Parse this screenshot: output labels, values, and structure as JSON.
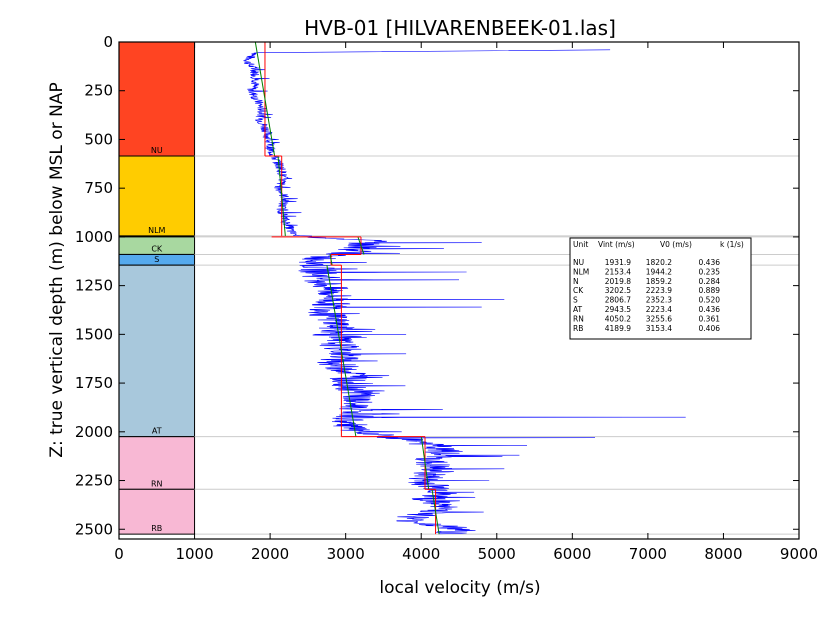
{
  "chart_data": {
    "type": "line",
    "title": "HVB-01 [HILVARENBEEK-01.las]",
    "xlabel": "local velocity (m/s)",
    "ylabel": "Z: true vertical depth (m) below MSL or NAP",
    "xlim": [
      0,
      9000
    ],
    "ylim": [
      0,
      2550
    ],
    "y_inverted": true,
    "x_ticks": [
      "0",
      "1000",
      "2000",
      "3000",
      "4000",
      "5000",
      "6000",
      "7000",
      "8000",
      "9000"
    ],
    "y_ticks": [
      "0",
      "250",
      "500",
      "750",
      "1000",
      "1250",
      "1500",
      "1750",
      "2000",
      "2250",
      "2500"
    ],
    "x_tick_values": [
      0,
      1000,
      2000,
      3000,
      4000,
      5000,
      6000,
      7000,
      8000,
      9000
    ],
    "y_tick_values": [
      0,
      250,
      500,
      750,
      1000,
      1250,
      1500,
      1750,
      2000,
      2250,
      2500
    ],
    "colors": {
      "log": "#0000ff",
      "vint": "#ff0000",
      "v0k": "#008000",
      "boundary": "#cccccc"
    },
    "units": [
      {
        "name": "NU",
        "label": "NU",
        "top": 0,
        "base": 585,
        "color": "#ff4422",
        "vint": 1931.9,
        "v0": 1820.2,
        "k": 0.436
      },
      {
        "name": "NLM",
        "label": "NLM",
        "top": 585,
        "base": 995,
        "color": "#ffcc00",
        "vint": 2153.4,
        "v0": 1944.2,
        "k": 0.235
      },
      {
        "name": "N",
        "label": "",
        "top": 995,
        "base": 1000,
        "color": "#ffcc00",
        "vint": 2019.8,
        "v0": 1859.2,
        "k": 0.284
      },
      {
        "name": "CK",
        "label": "CK",
        "top": 1000,
        "base": 1090,
        "color": "#a8d8a0",
        "vint": 3202.5,
        "v0": 2223.9,
        "k": 0.889
      },
      {
        "name": "S",
        "label": "S",
        "top": 1090,
        "base": 1145,
        "color": "#55aaee",
        "vint": 2806.7,
        "v0": 2352.3,
        "k": 0.52
      },
      {
        "name": "AT",
        "label": "AT",
        "top": 1145,
        "base": 2025,
        "color": "#a8c8dc",
        "vint": 2943.5,
        "v0": 2223.4,
        "k": 0.436
      },
      {
        "name": "RN",
        "label": "RN",
        "top": 2025,
        "base": 2295,
        "color": "#f8b8d4",
        "vint": 4050.2,
        "v0": 3255.6,
        "k": 0.361
      },
      {
        "name": "RB",
        "label": "RB",
        "top": 2295,
        "base": 2525,
        "color": "#f8b8d4",
        "vint": 4189.9,
        "v0": 3153.4,
        "k": 0.406
      }
    ],
    "legend": {
      "placement": "right",
      "header": [
        "Unit",
        "Vint (m/s)",
        "V0 (m/s)",
        "k (1/s)"
      ],
      "rows": [
        [
          "NU",
          "1931.9",
          "1820.2",
          "0.436"
        ],
        [
          "NLM",
          "2153.4",
          "1944.2",
          "0.235"
        ],
        [
          "N",
          "2019.8",
          "1859.2",
          "0.284"
        ],
        [
          "CK",
          "3202.5",
          "2223.9",
          "0.889"
        ],
        [
          "S",
          "2806.7",
          "2352.3",
          "0.520"
        ],
        [
          "AT",
          "2943.5",
          "2223.4",
          "0.436"
        ],
        [
          "RN",
          "4050.2",
          "3255.6",
          "0.361"
        ],
        [
          "RB",
          "4189.9",
          "3153.4",
          "0.406"
        ]
      ]
    },
    "log_trend": [
      [
        1850,
        55
      ],
      [
        1750,
        70
      ],
      [
        1700,
        100
      ],
      [
        1800,
        150
      ],
      [
        1820,
        200
      ],
      [
        1750,
        250
      ],
      [
        1830,
        300
      ],
      [
        1900,
        350
      ],
      [
        1870,
        400
      ],
      [
        1950,
        450
      ],
      [
        1980,
        500
      ],
      [
        2000,
        550
      ],
      [
        2050,
        585
      ],
      [
        2150,
        650
      ],
      [
        2170,
        700
      ],
      [
        2120,
        750
      ],
      [
        2200,
        800
      ],
      [
        2150,
        850
      ],
      [
        2180,
        900
      ],
      [
        2250,
        950
      ],
      [
        2300,
        990
      ],
      [
        3300,
        1020
      ],
      [
        3200,
        1050
      ],
      [
        3100,
        1080
      ],
      [
        2700,
        1100
      ],
      [
        2600,
        1150
      ],
      [
        2750,
        1250
      ],
      [
        2850,
        1300
      ],
      [
        2800,
        1350
      ],
      [
        2750,
        1400
      ],
      [
        2900,
        1450
      ],
      [
        2800,
        1500
      ],
      [
        2900,
        1550
      ],
      [
        3000,
        1600
      ],
      [
        2850,
        1650
      ],
      [
        3100,
        1700
      ],
      [
        3000,
        1750
      ],
      [
        3200,
        1800
      ],
      [
        3100,
        1850
      ],
      [
        3200,
        1900
      ],
      [
        3000,
        1950
      ],
      [
        3100,
        2000
      ],
      [
        4000,
        2050
      ],
      [
        4300,
        2100
      ],
      [
        4100,
        2150
      ],
      [
        4200,
        2200
      ],
      [
        4000,
        2250
      ],
      [
        4300,
        2300
      ],
      [
        4100,
        2350
      ],
      [
        4300,
        2400
      ],
      [
        3800,
        2450
      ],
      [
        4500,
        2500
      ],
      [
        4400,
        2525
      ]
    ],
    "log_spikes": [
      [
        6500,
        40
      ],
      [
        4800,
        1030
      ],
      [
        4300,
        1060
      ],
      [
        4600,
        1180
      ],
      [
        4500,
        1220
      ],
      [
        5100,
        1320
      ],
      [
        4800,
        1360
      ],
      [
        3800,
        1500
      ],
      [
        3800,
        1600
      ],
      [
        7500,
        1925
      ],
      [
        6300,
        2030
      ],
      [
        5400,
        2070
      ],
      [
        5300,
        2120
      ],
      [
        5100,
        2190
      ],
      [
        4900,
        2250
      ],
      [
        4700,
        2310
      ]
    ]
  }
}
